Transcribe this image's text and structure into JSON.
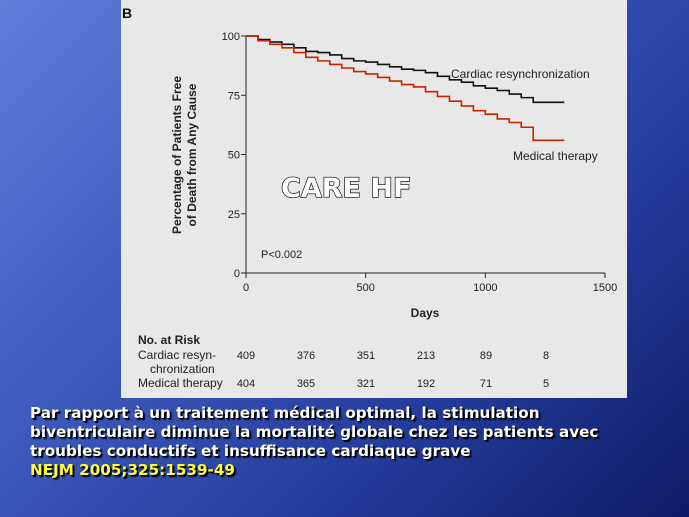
{
  "slide": {
    "caption_lines": [
      "Par rapport à un traitement médical optimal, la stimulation",
      "biventriculaire diminue la mortalité globale chez les patients avec",
      "troubles conductifs et insuffisance cardiaque grave"
    ],
    "citation": "NEJM 2005;325:1539-49",
    "caption_color": "#ffffff",
    "citation_color": "#ffff33"
  },
  "chart_data": {
    "type": "line",
    "panel_label": "B",
    "overlay_title": "CARE HF",
    "xlabel": "Days",
    "ylabel": [
      "Percentage of Patients Free",
      "of Death from Any Cause"
    ],
    "xlim": [
      0,
      1500
    ],
    "ylim": [
      0,
      100
    ],
    "x_ticks": [
      0,
      500,
      1000,
      1500
    ],
    "y_ticks": [
      0,
      25,
      50,
      75,
      100
    ],
    "grid": false,
    "annotation": "P<0.002",
    "series": [
      {
        "name": "Cardiac resynchronization",
        "color": "#111111",
        "x": [
          0,
          50,
          100,
          150,
          200,
          250,
          300,
          350,
          400,
          450,
          500,
          550,
          600,
          650,
          700,
          750,
          800,
          850,
          900,
          950,
          1000,
          1050,
          1100,
          1150,
          1200,
          1250,
          1300,
          1330
        ],
        "y": [
          100,
          98.5,
          97.5,
          96.5,
          95,
          93.5,
          93,
          92,
          90.5,
          89.5,
          89,
          88,
          87,
          86,
          85.5,
          84.5,
          83,
          81.5,
          80.5,
          79,
          78,
          77,
          75.5,
          74,
          72,
          72,
          72,
          72
        ]
      },
      {
        "name": "Medical therapy",
        "color": "#cc2200",
        "x": [
          0,
          50,
          100,
          150,
          200,
          250,
          300,
          350,
          400,
          450,
          500,
          550,
          600,
          650,
          700,
          750,
          800,
          850,
          900,
          950,
          1000,
          1050,
          1100,
          1150,
          1200,
          1250,
          1300,
          1330
        ],
        "y": [
          100,
          98,
          96.5,
          95,
          93,
          91,
          89.5,
          88,
          86.5,
          85,
          84,
          82.5,
          81,
          79.5,
          78.5,
          76.5,
          74.5,
          72.5,
          70.5,
          68.5,
          67,
          65,
          63.5,
          61.5,
          56,
          56,
          56,
          56
        ]
      }
    ],
    "series_labels": [
      "Cardiac resynchronization",
      "Medical therapy"
    ],
    "risk_table": {
      "title": "No. at Risk",
      "rows": [
        {
          "label_lines": [
            "Cardiac resyn-",
            "chronization"
          ],
          "values": [
            409,
            376,
            351,
            213,
            89,
            8
          ]
        },
        {
          "label_lines": [
            "Medical therapy"
          ],
          "values": [
            404,
            365,
            321,
            192,
            71,
            5
          ]
        }
      ]
    }
  }
}
